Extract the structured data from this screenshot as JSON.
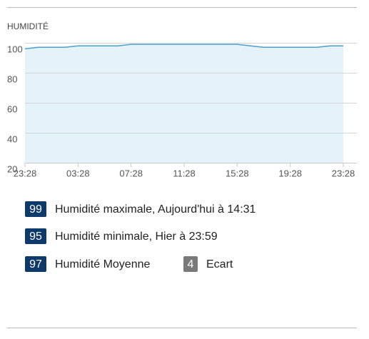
{
  "chart_data": {
    "type": "line",
    "title": "HUMIDITÉ",
    "x": [
      0,
      1,
      2,
      3,
      4,
      5,
      6,
      7,
      8,
      9,
      10,
      11,
      12,
      13,
      14,
      15,
      16,
      17,
      18,
      19,
      20,
      21,
      22,
      23,
      24
    ],
    "series": [
      {
        "name": "Humidité",
        "color": "#4a9fd0",
        "values": [
          96,
          97,
          97,
          97,
          98,
          98,
          98,
          98,
          99,
          99,
          99,
          99,
          99,
          99,
          99,
          99,
          99,
          98,
          97,
          97,
          97,
          97,
          97,
          98,
          98
        ]
      }
    ],
    "area_color": "#e4f2fa",
    "xlim": [
      0,
      24
    ],
    "xticks": [
      {
        "value": 0,
        "label": "23:28"
      },
      {
        "value": 4,
        "label": "03:28"
      },
      {
        "value": 8,
        "label": "07:28"
      },
      {
        "value": 12,
        "label": "11:28"
      },
      {
        "value": 16,
        "label": "15:28"
      },
      {
        "value": 20,
        "label": "19:28"
      },
      {
        "value": 24,
        "label": "23:28"
      }
    ],
    "ylim": [
      20,
      100
    ],
    "yticks": [
      20,
      40,
      60,
      80,
      100
    ],
    "grid": true
  },
  "stats": [
    {
      "value": 99,
      "label": "Humidité maximale, Aujourd'hui à 14:31",
      "color": "#0d3a6b"
    },
    {
      "value": 95,
      "label": "Humidité minimale, Hier à 23:59",
      "color": "#0d3a6b"
    },
    {
      "value": 97,
      "label": "Humidité Moyenne",
      "color": "#0d3a6b"
    },
    {
      "value": 4,
      "label": "Ecart",
      "color": "#7a7a7a"
    }
  ]
}
